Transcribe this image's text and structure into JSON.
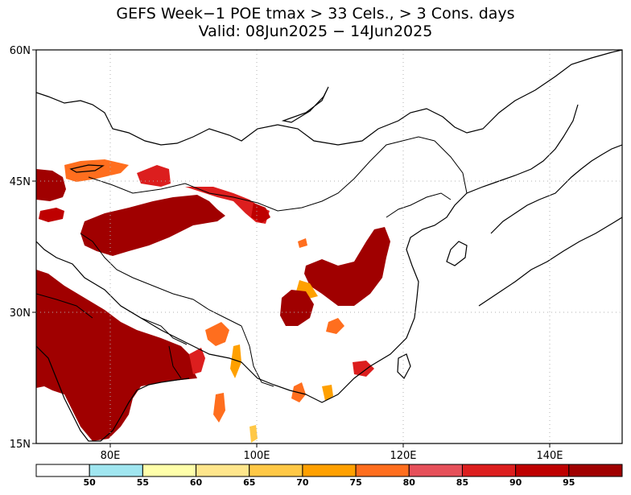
{
  "title": {
    "line1": "GEFS Week−1 POE tmax > 33 Cels., > 3 Cons. days",
    "line2": "Valid: 08Jun2025 − 14Jun2025"
  },
  "map": {
    "lat_labels": [
      "60N",
      "45N",
      "30N",
      "15N"
    ],
    "lon_labels": [
      "80E",
      "100E",
      "120E",
      "140E"
    ],
    "gridlines": true
  },
  "colorbar": {
    "labels": [
      "50",
      "55",
      "60",
      "65",
      "70",
      "75",
      "80",
      "85",
      "90",
      "95"
    ],
    "colors": [
      "#ffffff",
      "#a0e6f0",
      "#ffffaa",
      "#ffe68c",
      "#ffc846",
      "#ffa000",
      "#ff6e1e",
      "#e6505a",
      "#dc1e1e",
      "#be0000",
      "#a00000"
    ]
  }
}
